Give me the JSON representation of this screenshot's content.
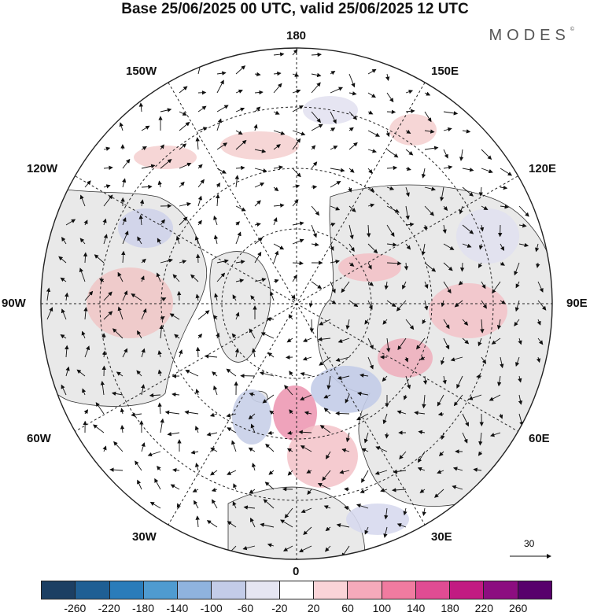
{
  "title": "Base 25/06/2025 00 UTC, valid 25/06/2025 12 UTC",
  "brand": {
    "name": "MODES",
    "mark": "©"
  },
  "longitude_labels": {
    "top": "180",
    "bottom": "0",
    "left": "90W",
    "right": "90E",
    "upper_left_1": "150W",
    "upper_left_2": "120W",
    "lower_left_1": "60W",
    "lower_left_2": "30W",
    "upper_right_1": "150E",
    "upper_right_2": "120E",
    "lower_right_1": "60E",
    "lower_right_2": "30E"
  },
  "reference_vector": {
    "label": "30"
  },
  "colorbar": {
    "ticks": [
      "-260",
      "-220",
      "-180",
      "-140",
      "-100",
      "-60",
      "-20",
      "20",
      "60",
      "100",
      "140",
      "180",
      "220",
      "260"
    ],
    "colors": [
      "#1c3f63",
      "#1f5f94",
      "#2a7cba",
      "#4f9bd0",
      "#8fb3de",
      "#c3cce8",
      "#e6e6f2",
      "#ffffff",
      "#fad4d8",
      "#f5aabb",
      "#f07ba0",
      "#e04c93",
      "#c21b82",
      "#8c0d80",
      "#58006c"
    ]
  }
}
